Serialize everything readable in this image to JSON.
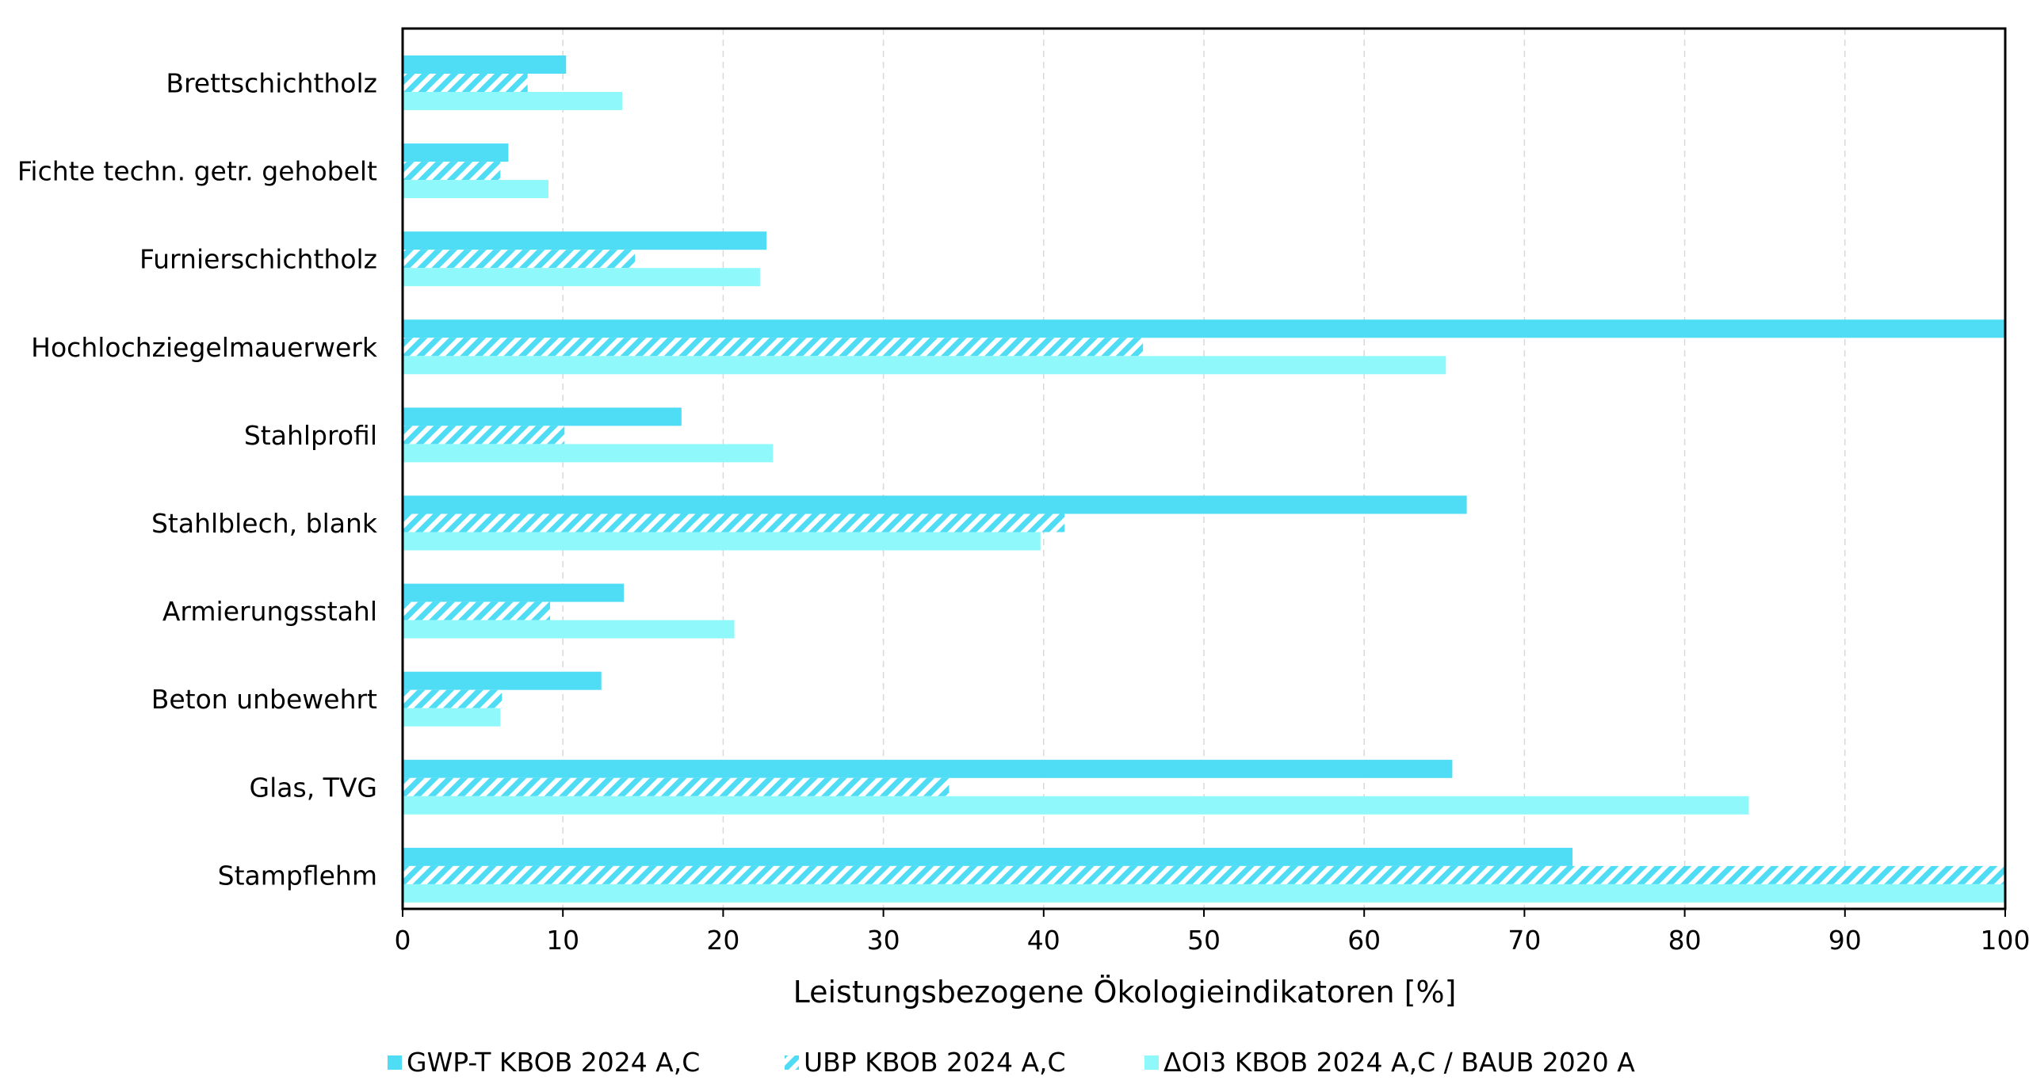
{
  "chart_data": {
    "type": "bar",
    "orientation": "horizontal",
    "title": "",
    "xlabel": "Leistungsbezogene Ökologieindikatoren [%]",
    "ylabel": "",
    "xlim": [
      0,
      100
    ],
    "xticks": [
      0,
      10,
      20,
      30,
      40,
      50,
      60,
      70,
      80,
      90,
      100
    ],
    "grid": "vertical-dashed",
    "legend_position": "bottom",
    "categories": [
      "Brettschichtholz",
      "Fichte techn. getr. gehobelt",
      "Furnierschichtholz",
      "Hochlochziegelmauerwerk",
      "Stahlprofil",
      "Stahlblech, blank",
      "Armierungsstahl",
      "Beton unbewehrt",
      "Glas, TVG",
      "Stampflehm"
    ],
    "series": [
      {
        "name": "GWP-T KBOB 2024 A,C",
        "color": "#4fdcf5",
        "pattern": "solid",
        "values": [
          10.2,
          6.6,
          22.7,
          100,
          17.4,
          66.4,
          13.8,
          12.4,
          65.5,
          73.0
        ]
      },
      {
        "name": "UBP KBOB 2024 A,C",
        "color": "#4fdcf5",
        "pattern": "hatched",
        "values": [
          7.8,
          6.1,
          14.5,
          46.2,
          10.1,
          41.3,
          9.2,
          6.2,
          34.1,
          100
        ]
      },
      {
        "name": "ΔOI3 KBOB 2024 A,C / BAUB 2020 A",
        "color": "#8ff8fb",
        "pattern": "solid",
        "values": [
          13.7,
          9.1,
          22.3,
          65.1,
          23.1,
          39.8,
          20.7,
          6.1,
          84.0,
          100
        ]
      }
    ]
  }
}
